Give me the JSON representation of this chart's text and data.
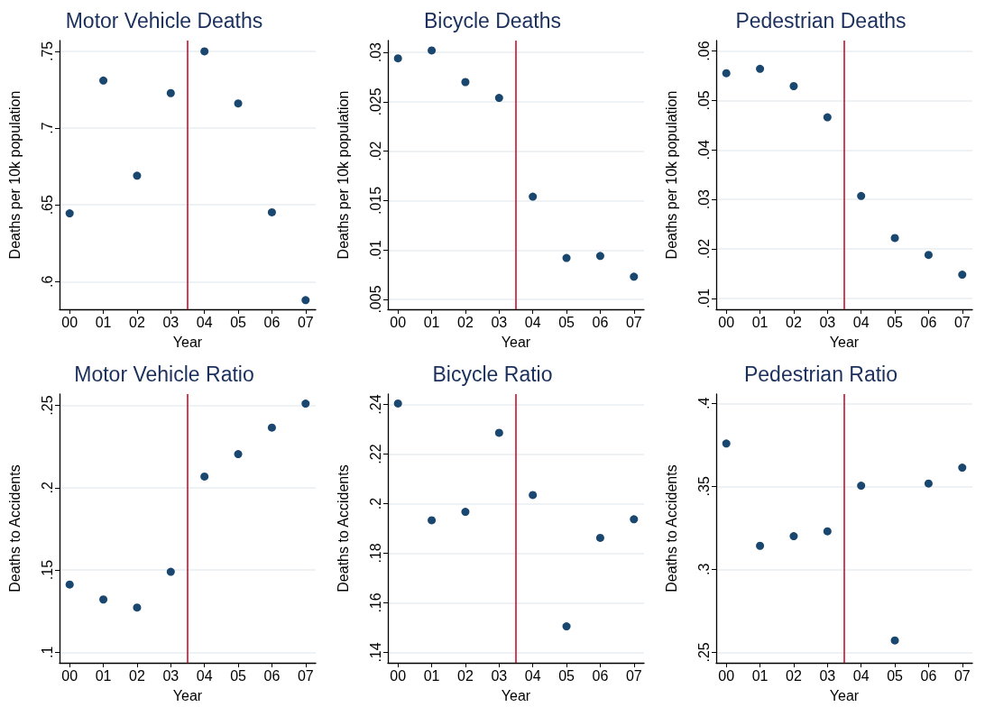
{
  "chart_data": [
    {
      "type": "scatter",
      "title": "Motor Vehicle Deaths",
      "xlabel": "Year",
      "ylabel": "Deaths per 10k population",
      "x": [
        0,
        1,
        2,
        3,
        4,
        5,
        6,
        7
      ],
      "color": "#1a476f",
      "marker": "circle",
      "grid": "y",
      "values": [
        0.6445,
        0.731,
        0.669,
        0.7228,
        0.75,
        0.7161,
        0.6452,
        0.588
      ],
      "xlim": [
        -0.3,
        7.3
      ],
      "xticks": [
        {
          "value": 0,
          "label": "00"
        },
        {
          "value": 1,
          "label": "01"
        },
        {
          "value": 2,
          "label": "02"
        },
        {
          "value": 3,
          "label": "03"
        },
        {
          "value": 4,
          "label": "04"
        },
        {
          "value": 5,
          "label": "05"
        },
        {
          "value": 6,
          "label": "06"
        },
        {
          "value": 7,
          "label": "07"
        }
      ],
      "ylim": [
        0.582,
        0.757
      ],
      "yticks": [
        {
          "value": 0.6,
          "label": ".6"
        },
        {
          "value": 0.65,
          "label": ".65"
        },
        {
          "value": 0.7,
          "label": ".7"
        },
        {
          "value": 0.75,
          "label": ".75"
        }
      ],
      "ref_lines": [
        {
          "axis": "x",
          "value": 3.5,
          "color": "#c8102e"
        }
      ]
    },
    {
      "type": "scatter",
      "title": "Bicycle Deaths",
      "xlabel": "Year",
      "ylabel": "Deaths per 10k population",
      "x": [
        0,
        1,
        2,
        3,
        4,
        5,
        6,
        7
      ],
      "color": "#1a476f",
      "marker": "circle",
      "grid": "y",
      "values": [
        0.0294,
        0.0302,
        0.027,
        0.0254,
        0.0154,
        0.0092,
        0.0094,
        0.0073
      ],
      "xlim": [
        -0.3,
        7.3
      ],
      "xticks": [
        {
          "value": 0,
          "label": "00"
        },
        {
          "value": 1,
          "label": "01"
        },
        {
          "value": 2,
          "label": "02"
        },
        {
          "value": 3,
          "label": "03"
        },
        {
          "value": 4,
          "label": "04"
        },
        {
          "value": 5,
          "label": "05"
        },
        {
          "value": 6,
          "label": "06"
        },
        {
          "value": 7,
          "label": "07"
        }
      ],
      "ylim": [
        0.004,
        0.0312
      ],
      "yticks": [
        {
          "value": 0.005,
          "label": ".005"
        },
        {
          "value": 0.01,
          "label": ".01"
        },
        {
          "value": 0.015,
          "label": ".015"
        },
        {
          "value": 0.02,
          "label": ".02"
        },
        {
          "value": 0.025,
          "label": ".025"
        },
        {
          "value": 0.03,
          "label": ".03"
        }
      ],
      "ref_lines": [
        {
          "axis": "x",
          "value": 3.5,
          "color": "#c8102e"
        }
      ]
    },
    {
      "type": "scatter",
      "title": "Pedestrian Deaths",
      "xlabel": "Year",
      "ylabel": "Deaths per 10k population",
      "x": [
        0,
        1,
        2,
        3,
        4,
        5,
        6,
        7
      ],
      "color": "#1a476f",
      "marker": "circle",
      "grid": "y",
      "values": [
        0.0555,
        0.0564,
        0.0529,
        0.0466,
        0.0307,
        0.0222,
        0.0188,
        0.0148
      ],
      "xlim": [
        -0.3,
        7.3
      ],
      "xticks": [
        {
          "value": 0,
          "label": "00"
        },
        {
          "value": 1,
          "label": "01"
        },
        {
          "value": 2,
          "label": "02"
        },
        {
          "value": 3,
          "label": "03"
        },
        {
          "value": 4,
          "label": "04"
        },
        {
          "value": 5,
          "label": "05"
        },
        {
          "value": 6,
          "label": "06"
        },
        {
          "value": 7,
          "label": "07"
        }
      ],
      "ylim": [
        0.0078,
        0.0621
      ],
      "yticks": [
        {
          "value": 0.01,
          "label": ".01"
        },
        {
          "value": 0.02,
          "label": ".02"
        },
        {
          "value": 0.03,
          "label": ".03"
        },
        {
          "value": 0.04,
          "label": ".04"
        },
        {
          "value": 0.05,
          "label": ".05"
        },
        {
          "value": 0.06,
          "label": ".06"
        }
      ],
      "ref_lines": [
        {
          "axis": "x",
          "value": 3.5,
          "color": "#c8102e"
        }
      ]
    },
    {
      "type": "scatter",
      "title": "Motor Vehicle Ratio",
      "xlabel": "Year",
      "ylabel": "Deaths to Accidents",
      "x": [
        0,
        1,
        2,
        3,
        4,
        5,
        6,
        7
      ],
      "color": "#1a476f",
      "marker": "circle",
      "grid": "y",
      "values": [
        0.1412,
        0.1321,
        0.1272,
        0.1489,
        0.2068,
        0.2204,
        0.2365,
        0.2511
      ],
      "xlim": [
        -0.3,
        7.3
      ],
      "xticks": [
        {
          "value": 0,
          "label": "00"
        },
        {
          "value": 1,
          "label": "01"
        },
        {
          "value": 2,
          "label": "02"
        },
        {
          "value": 3,
          "label": "03"
        },
        {
          "value": 4,
          "label": "04"
        },
        {
          "value": 5,
          "label": "05"
        },
        {
          "value": 6,
          "label": "06"
        },
        {
          "value": 7,
          "label": "07"
        }
      ],
      "ylim": [
        0.0936,
        0.2569
      ],
      "yticks": [
        {
          "value": 0.1,
          "label": ".1"
        },
        {
          "value": 0.15,
          "label": ".15"
        },
        {
          "value": 0.2,
          "label": ".2"
        },
        {
          "value": 0.25,
          "label": ".25"
        }
      ],
      "ref_lines": [
        {
          "axis": "x",
          "value": 3.5,
          "color": "#c8102e"
        }
      ]
    },
    {
      "type": "scatter",
      "title": "Bicycle Ratio",
      "xlabel": "Year",
      "ylabel": "Deaths to Accidents",
      "x": [
        0,
        1,
        2,
        3,
        4,
        5,
        6,
        7
      ],
      "color": "#1a476f",
      "marker": "circle",
      "grid": "y",
      "values": [
        0.2404,
        0.1933,
        0.1967,
        0.2286,
        0.2035,
        0.1505,
        0.1862,
        0.1937
      ],
      "xlim": [
        -0.3,
        7.3
      ],
      "xticks": [
        {
          "value": 0,
          "label": "00"
        },
        {
          "value": 1,
          "label": "01"
        },
        {
          "value": 2,
          "label": "02"
        },
        {
          "value": 3,
          "label": "03"
        },
        {
          "value": 4,
          "label": "04"
        },
        {
          "value": 5,
          "label": "05"
        },
        {
          "value": 6,
          "label": "06"
        },
        {
          "value": 7,
          "label": "07"
        }
      ],
      "ylim": [
        0.1358,
        0.2442
      ],
      "yticks": [
        {
          "value": 0.14,
          "label": ".14"
        },
        {
          "value": 0.16,
          "label": ".16"
        },
        {
          "value": 0.18,
          "label": ".18"
        },
        {
          "value": 0.2,
          "label": ".2"
        },
        {
          "value": 0.22,
          "label": ".22"
        },
        {
          "value": 0.24,
          "label": ".24"
        }
      ],
      "ref_lines": [
        {
          "axis": "x",
          "value": 3.5,
          "color": "#c8102e"
        }
      ]
    },
    {
      "type": "scatter",
      "title": "Pedestrian Ratio",
      "xlabel": "Year",
      "ylabel": "Deaths to Accidents",
      "x": [
        0,
        1,
        2,
        3,
        4,
        5,
        6,
        7
      ],
      "color": "#1a476f",
      "marker": "circle",
      "grid": "y",
      "values": [
        0.3758,
        0.3142,
        0.32,
        0.3229,
        0.3504,
        0.2572,
        0.3517,
        0.3613
      ],
      "xlim": [
        -0.3,
        7.3
      ],
      "xticks": [
        {
          "value": 0,
          "label": "00"
        },
        {
          "value": 1,
          "label": "01"
        },
        {
          "value": 2,
          "label": "02"
        },
        {
          "value": 3,
          "label": "03"
        },
        {
          "value": 4,
          "label": "04"
        },
        {
          "value": 5,
          "label": "05"
        },
        {
          "value": 6,
          "label": "06"
        },
        {
          "value": 7,
          "label": "07"
        }
      ],
      "ylim": [
        0.2437,
        0.4056
      ],
      "yticks": [
        {
          "value": 0.25,
          "label": ".25"
        },
        {
          "value": 0.3,
          "label": ".3"
        },
        {
          "value": 0.35,
          "label": ".35"
        },
        {
          "value": 0.4,
          "label": ".4"
        }
      ],
      "ref_lines": [
        {
          "axis": "x",
          "value": 3.5,
          "color": "#c8102e"
        }
      ]
    }
  ]
}
